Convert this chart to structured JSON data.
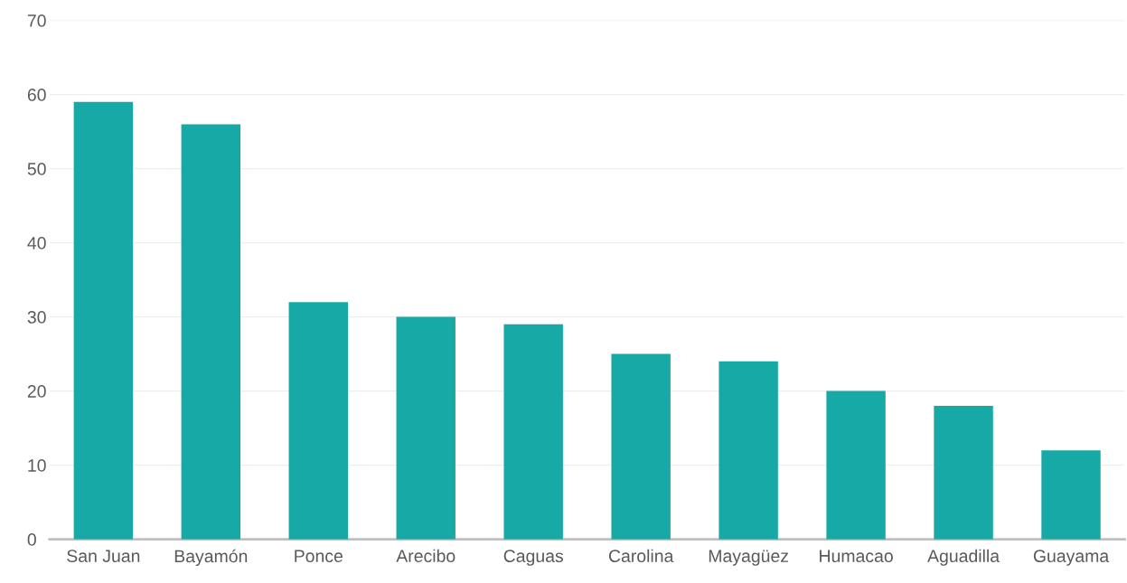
{
  "chart_data": {
    "type": "bar",
    "categories": [
      "San Juan",
      "Bayamón",
      "Ponce",
      "Arecibo",
      "Caguas",
      "Carolina",
      "Mayagüez",
      "Humacao",
      "Aguadilla",
      "Guayama"
    ],
    "values": [
      59,
      56,
      32,
      30,
      29,
      25,
      24,
      20,
      18,
      12
    ],
    "color": "#17a9a5",
    "ylim": [
      0,
      70
    ],
    "yticks": [
      0,
      10,
      20,
      30,
      40,
      50,
      60,
      70
    ],
    "grid": "y",
    "legend": false
  }
}
